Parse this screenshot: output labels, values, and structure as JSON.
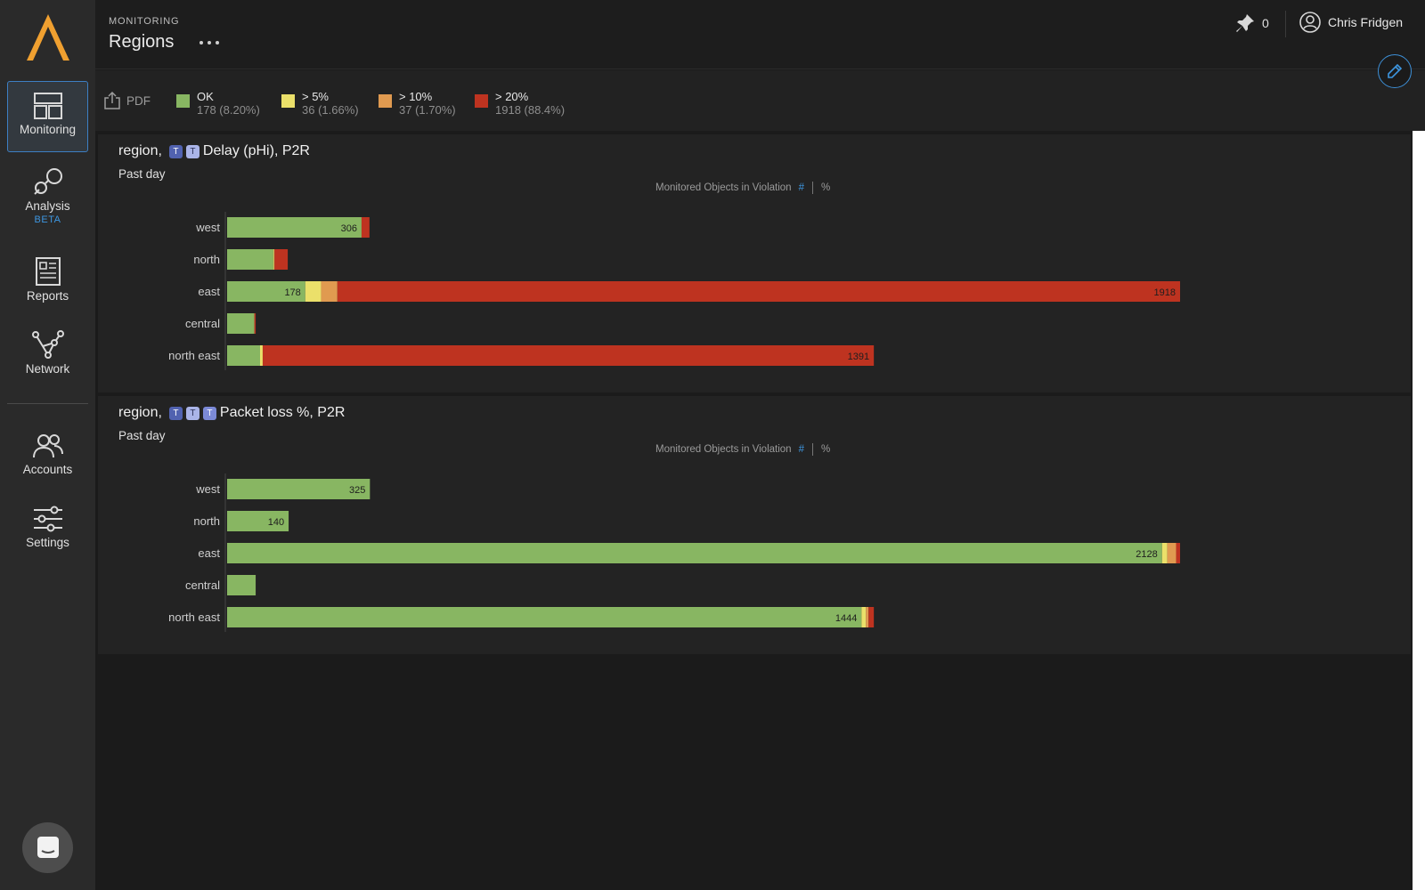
{
  "app": {
    "section": "MONITORING",
    "title": "Regions",
    "pin_count": "0",
    "user_name": "Chris Fridgen"
  },
  "sidebar": {
    "items": [
      {
        "label": "Monitoring",
        "icon": "monitoring-icon",
        "active": true
      },
      {
        "label": "Analysis",
        "icon": "analysis-icon",
        "badge": "BETA"
      },
      {
        "label": "Reports",
        "icon": "reports-icon"
      },
      {
        "label": "Network",
        "icon": "network-icon"
      },
      {
        "label": "Accounts",
        "icon": "accounts-icon"
      },
      {
        "label": "Settings",
        "icon": "settings-icon"
      }
    ]
  },
  "toolbar": {
    "pdf_label": "PDF",
    "legend": [
      {
        "label": "OK",
        "count": "178 (8.20%)",
        "color": "#88b662"
      },
      {
        "label": "> 5%",
        "count": "36 (1.66%)",
        "color": "#ebe06a"
      },
      {
        "label": "> 10%",
        "count": "37 (1.70%)",
        "color": "#e09a50"
      },
      {
        "label": "> 20%",
        "count": "1918 (88.4%)",
        "color": "#be3320"
      }
    ]
  },
  "colors": {
    "ok": "#88b662",
    "gt5": "#ebe06a",
    "gt10": "#e09a50",
    "gt20": "#be3320",
    "accent": "#3d96e0"
  },
  "panels": [
    {
      "title_prefix": "region,",
      "tags": [
        "T",
        "T"
      ],
      "title_suffix": "Delay (pHi), P2R",
      "period": "Past day",
      "metric_label": "Monitored Objects in Violation",
      "metric_hash": "#",
      "metric_pct": "%"
    },
    {
      "title_prefix": "region,",
      "tags": [
        "T",
        "T",
        "T"
      ],
      "title_suffix": "Packet loss %, P2R",
      "period": "Past day",
      "metric_label": "Monitored Objects in Violation",
      "metric_hash": "#",
      "metric_pct": "%"
    }
  ],
  "chart_data": [
    {
      "type": "bar",
      "orientation": "horizontal",
      "stacked": true,
      "title": "region, Delay (pHi), P2R",
      "categories": [
        "west",
        "north",
        "east",
        "central",
        "north east"
      ],
      "series": [
        {
          "name": "OK",
          "values": [
            306,
            105,
            178,
            62,
            75
          ]
        },
        {
          "name": "> 5%",
          "values": [
            0,
            2,
            36,
            0,
            6
          ]
        },
        {
          "name": "> 10%",
          "values": [
            0,
            1,
            37,
            0,
            0
          ]
        },
        {
          "name": "> 20%",
          "values": [
            18,
            30,
            1918,
            3,
            1391
          ]
        }
      ],
      "data_labels": [
        {
          "category": "west",
          "series": "OK",
          "text": "306"
        },
        {
          "category": "east",
          "series": "OK",
          "text": "178"
        },
        {
          "category": "east",
          "series": "> 20%",
          "text": "1918"
        },
        {
          "category": "north east",
          "series": "> 20%",
          "text": "1391"
        }
      ],
      "xlim": [
        0,
        2169
      ]
    },
    {
      "type": "bar",
      "orientation": "horizontal",
      "stacked": true,
      "title": "region, Packet loss %, P2R",
      "categories": [
        "west",
        "north",
        "east",
        "central",
        "north east"
      ],
      "series": [
        {
          "name": "OK",
          "values": [
            325,
            140,
            2128,
            65,
            1444
          ]
        },
        {
          "name": "> 5%",
          "values": [
            0,
            0,
            12,
            0,
            10
          ]
        },
        {
          "name": "> 10%",
          "values": [
            0,
            0,
            20,
            0,
            6
          ]
        },
        {
          "name": "> 20%",
          "values": [
            0,
            0,
            9,
            0,
            12
          ]
        }
      ],
      "data_labels": [
        {
          "category": "west",
          "series": "OK",
          "text": "325"
        },
        {
          "category": "north",
          "series": "OK",
          "text": "140"
        },
        {
          "category": "east",
          "series": "OK",
          "text": "2128"
        },
        {
          "category": "north east",
          "series": "OK",
          "text": "1444"
        }
      ],
      "xlim": [
        0,
        2169
      ]
    }
  ]
}
